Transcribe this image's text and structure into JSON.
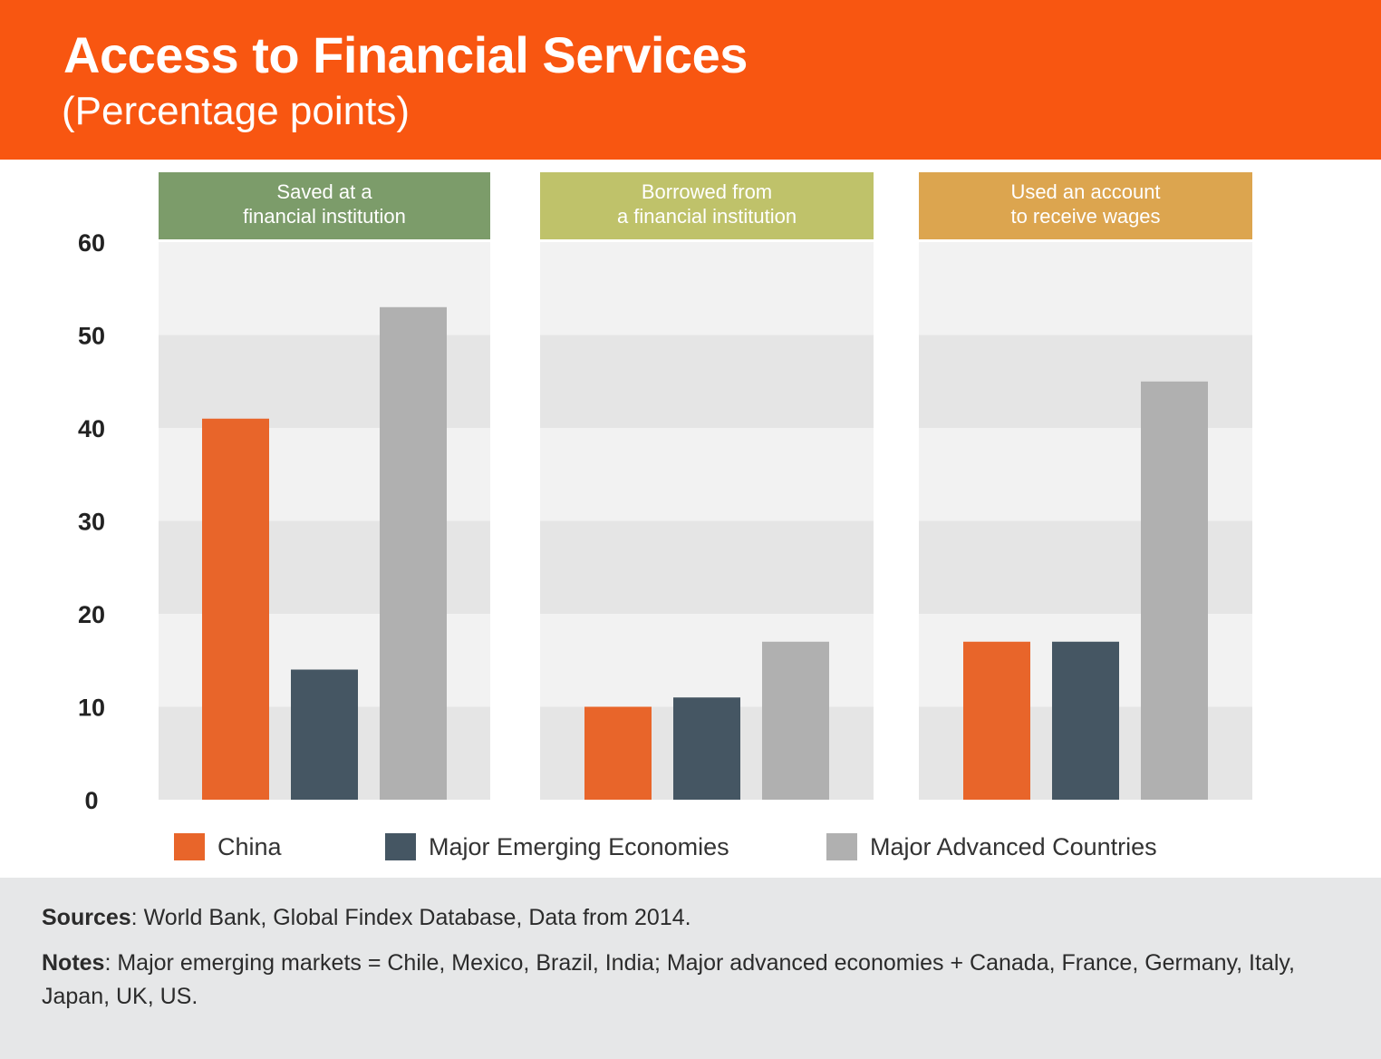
{
  "header": {
    "title": "Access to Financial Services",
    "subtitle": "(Percentage points)"
  },
  "colors": {
    "header_bg": "#f85611",
    "china": "#e8652a",
    "emerging": "#455663",
    "advanced": "#b0b0b0",
    "panel1_header": "#7c9c6a",
    "panel2_header": "#bfc26a",
    "panel3_header": "#dca54f",
    "band_light": "#f2f2f2",
    "band_dark": "#e5e5e5",
    "footer_bg": "#e6e7e8"
  },
  "chart_data": {
    "type": "bar",
    "title": "Access to Financial Services",
    "subtitle": "(Percentage points)",
    "categories": [
      [
        "Saved at a",
        "financial institution"
      ],
      [
        "Borrowed from",
        "a financial institution"
      ],
      [
        "Used an account",
        "to receive wages"
      ]
    ],
    "series": [
      {
        "name": "China",
        "color": "#e8652a",
        "values": [
          41,
          10,
          17
        ]
      },
      {
        "name": "Major Emerging Economies",
        "color": "#455663",
        "values": [
          14,
          11,
          17
        ]
      },
      {
        "name": "Major Advanced Countries",
        "color": "#b0b0b0",
        "values": [
          53,
          17,
          45
        ]
      }
    ],
    "yticks": [
      0,
      10,
      20,
      30,
      40,
      50,
      60
    ],
    "ylim": [
      0,
      60
    ],
    "xlabel": "",
    "ylabel": "",
    "legend_position": "bottom",
    "grid": "alternating horizontal bands"
  },
  "footer": {
    "sources_label": "Sources",
    "sources_text": ": World Bank, Global Findex Database, Data from 2014.",
    "notes_label": "Notes",
    "notes_text": ":  Major emerging markets = Chile, Mexico, Brazil, India; Major advanced economies + Canada, France, Germany, Italy, Japan, UK, US."
  }
}
